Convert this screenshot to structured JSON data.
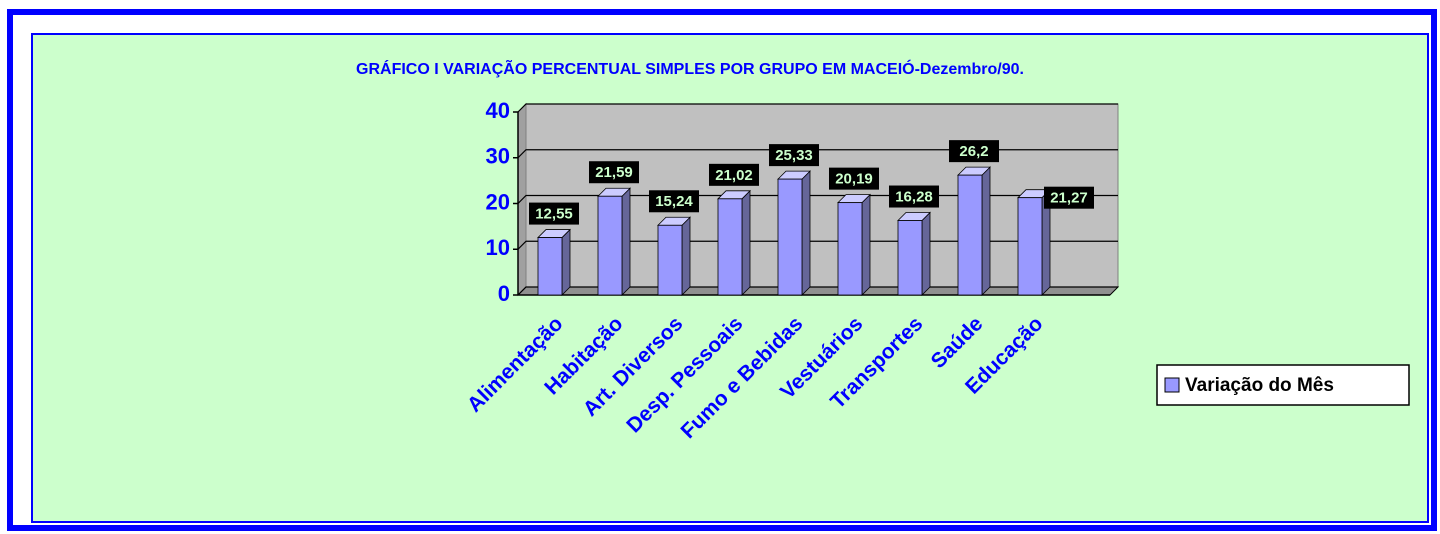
{
  "chart_data": {
    "type": "bar3d",
    "title": "GRÁFICO I VARIAÇÃO PERCENTUAL SIMPLES POR GRUPO EM MACEIÓ-Dezembro/90.",
    "categories": [
      "Alimentação",
      "Habitação",
      "Art. Diversos",
      "Desp. Pessoais",
      "Fumo e Bebidas",
      "Vestuários",
      "Transportes",
      "Saúde",
      "Educação"
    ],
    "series": [
      {
        "name": "Variação do Mês",
        "color": "#9999ff",
        "values": [
          12.55,
          21.59,
          15.24,
          21.02,
          25.33,
          20.19,
          16.28,
          26.2,
          21.27
        ],
        "value_labels": [
          "12,55",
          "21,59",
          "15,24",
          "21,02",
          "25,33",
          "20,19",
          "16,28",
          "26,2",
          "21,27"
        ]
      }
    ],
    "ylim": [
      0,
      40
    ],
    "yticks": [
      0,
      10,
      20,
      30,
      40
    ],
    "grid": true,
    "legend": "right"
  }
}
